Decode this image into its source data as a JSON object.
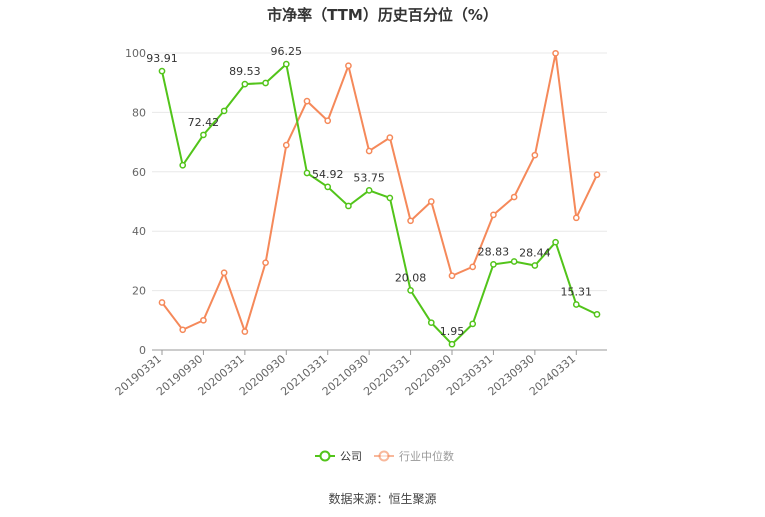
{
  "title": "市净率（TTM）历史百分位（%）",
  "source": "数据来源：恒生聚源",
  "colors": {
    "company": "#52c41a",
    "industry": "#f5895a",
    "axis": "#666666",
    "grid": "#e8e8e8"
  },
  "chart_data": {
    "type": "line",
    "title": "市净率（TTM）历史百分位（%）",
    "xlabel": "",
    "ylabel": "",
    "ylim": [
      0,
      100
    ],
    "yticks": [
      0,
      20,
      40,
      60,
      80,
      100
    ],
    "grid": true,
    "legend": "bottom",
    "x": [
      "20190331",
      "20190630",
      "20190930",
      "20191231",
      "20200331",
      "20200630",
      "20200930",
      "20201231",
      "20210331",
      "20210630",
      "20210930",
      "20211231",
      "20220331",
      "20220630",
      "20220930",
      "20221231",
      "20230331",
      "20230630",
      "20230930",
      "20231231",
      "20240331",
      "20240630"
    ],
    "xtick_labels": [
      "20190331",
      "20190930",
      "20200331",
      "20200930",
      "20210331",
      "20210930",
      "20220331",
      "20220930",
      "20230331",
      "20230930",
      "20240331"
    ],
    "series": [
      {
        "name": "公司",
        "color": "#52c41a",
        "values": [
          93.91,
          62.2,
          72.42,
          80.5,
          89.53,
          89.9,
          96.25,
          59.6,
          54.92,
          48.5,
          53.75,
          51.2,
          20.08,
          9.2,
          1.95,
          8.8,
          28.83,
          29.8,
          28.44,
          36.3,
          15.31,
          12.0
        ],
        "labels": [
          93.91,
          null,
          72.42,
          null,
          89.53,
          null,
          96.25,
          null,
          54.92,
          null,
          53.75,
          null,
          20.08,
          null,
          1.95,
          null,
          28.83,
          null,
          28.44,
          null,
          15.31,
          null
        ]
      },
      {
        "name": "行业中位数",
        "color": "#f5895a",
        "values": [
          16.0,
          6.8,
          10.0,
          26.0,
          6.2,
          29.4,
          69.0,
          83.8,
          77.2,
          95.7,
          67.0,
          71.5,
          43.5,
          50.0,
          25.0,
          28.0,
          45.5,
          51.5,
          65.6,
          99.9,
          44.5,
          59.0
        ]
      }
    ]
  }
}
